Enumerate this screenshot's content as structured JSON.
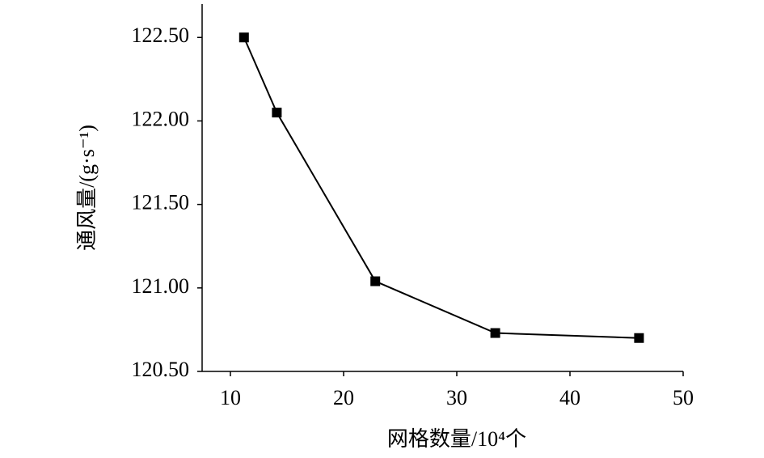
{
  "chart_data": {
    "type": "line",
    "x_label": "网格数量/10⁴个",
    "y_label": "通风量/(g·s⁻¹)",
    "x": [
      11.2,
      14.1,
      22.8,
      33.4,
      46.1
    ],
    "series": [
      {
        "color": "#000000",
        "values": [
          122.5,
          122.05,
          121.04,
          120.73,
          120.7
        ]
      }
    ],
    "xlim": [
      7.5,
      50
    ],
    "xticks": [
      10,
      20,
      30,
      40,
      50
    ],
    "ylim": [
      120.5,
      122.7
    ],
    "yticks": [
      {
        "value": 120.5,
        "label": "120.50"
      },
      {
        "value": 121,
        "label": "121.00"
      },
      {
        "value": 121.5,
        "label": "121.50"
      },
      {
        "value": 122,
        "label": "122.00"
      },
      {
        "value": 122.5,
        "label": "122.50"
      }
    ],
    "grid": false
  }
}
